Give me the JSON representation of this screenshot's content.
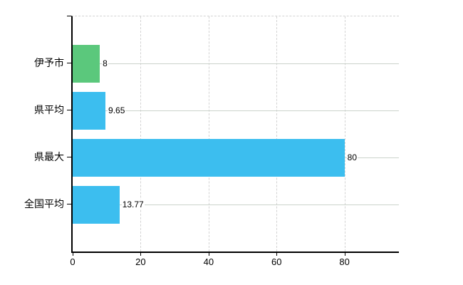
{
  "chart": {
    "background_color": "#ffffff",
    "axis_color": "#000000",
    "grid_color_solid": "#ccd3cc",
    "grid_color_dashed": "#d3d3d3",
    "text_color": "#000000"
  },
  "chart_data": {
    "type": "bar",
    "orientation": "horizontal",
    "title": "",
    "xlabel": "",
    "ylabel": "",
    "categories": [
      "伊予市",
      "県平均",
      "県最大",
      "全国平均"
    ],
    "values": [
      8,
      9.65,
      80,
      13.77
    ],
    "value_labels": [
      "8",
      "9.65",
      "80",
      "13.77"
    ],
    "bar_colors": [
      "#5bc87c",
      "#3cbeef",
      "#3cbeef",
      "#3cbeef"
    ],
    "xlim": [
      0,
      96
    ],
    "xticks": [
      0,
      20,
      40,
      60,
      80
    ],
    "grid": true,
    "legend": false
  }
}
